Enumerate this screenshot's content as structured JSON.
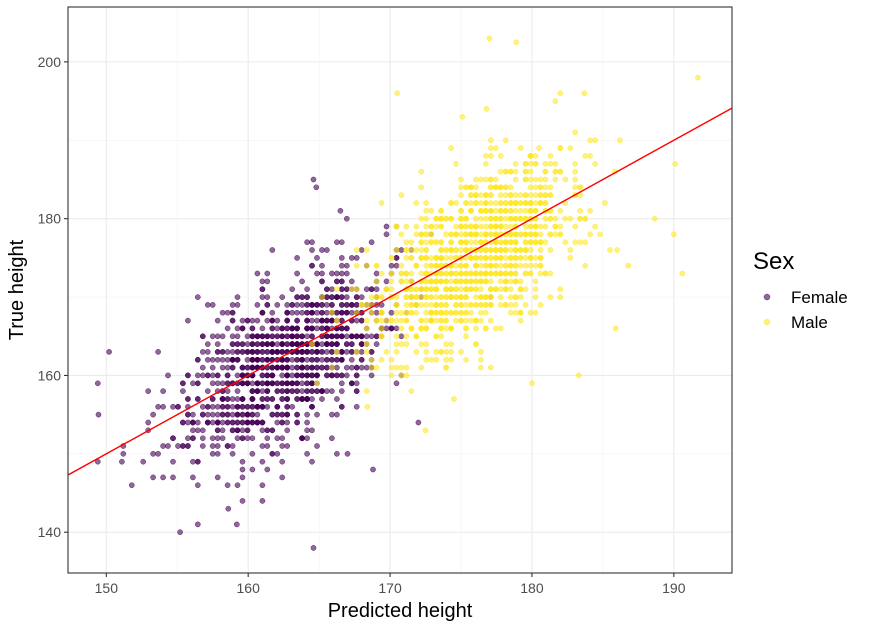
{
  "chart_data": {
    "type": "scatter",
    "xlabel": "Predicted height",
    "ylabel": "True height",
    "xlim": [
      147.3,
      194.1
    ],
    "ylim": [
      134.8,
      207.0
    ],
    "x_ticks": [
      150,
      160,
      170,
      180,
      190
    ],
    "y_ticks": [
      140,
      160,
      180,
      200
    ],
    "grid": true,
    "legend": {
      "title": "Sex",
      "placement": "right",
      "entries": [
        "Female",
        "Male"
      ]
    },
    "series": [
      {
        "name": "Female",
        "color": "#440154",
        "opacity": 0.6,
        "generated_points": {
          "count": 1200,
          "x_mean": 162.5,
          "x_sd": 3.6,
          "y_mean": 161.5,
          "y_sd": 5.8,
          "correlation": 0.55,
          "x_step": 0.35,
          "y_step": 1.0
        },
        "points": [
          [
            149.4,
            159
          ],
          [
            149.4,
            149
          ],
          [
            150.2,
            163
          ],
          [
            151.1,
            149
          ],
          [
            151.8,
            146
          ],
          [
            155.2,
            140
          ],
          [
            158.6,
            143
          ],
          [
            159.2,
            141
          ],
          [
            164.6,
            138
          ],
          [
            164.8,
            184
          ],
          [
            164.6,
            185
          ],
          [
            166.5,
            181
          ],
          [
            168.8,
            148
          ],
          [
            167.0,
            150
          ],
          [
            172.0,
            154
          ]
        ]
      },
      {
        "name": "Male",
        "color": "#FDE725",
        "opacity": 0.6,
        "generated_points": {
          "count": 1200,
          "x_mean": 176.0,
          "x_sd": 3.6,
          "y_mean": 175.0,
          "y_sd": 6.0,
          "correlation": 0.55,
          "x_step": 0.35,
          "y_step": 1.0
        },
        "points": [
          [
            177.0,
            203
          ],
          [
            178.9,
            202.5
          ],
          [
            191.7,
            198
          ],
          [
            190.1,
            187
          ],
          [
            190.6,
            173
          ],
          [
            190.0,
            178
          ],
          [
            186.0,
            176
          ],
          [
            185.9,
            166
          ],
          [
            186.8,
            174
          ],
          [
            170.5,
            196
          ],
          [
            172.5,
            153
          ],
          [
            168.4,
            156
          ],
          [
            174.5,
            157
          ],
          [
            180.0,
            159
          ],
          [
            183.3,
            160
          ],
          [
            180.5,
            189
          ],
          [
            176.8,
            194
          ],
          [
            175.1,
            193
          ],
          [
            182.0,
            196
          ],
          [
            183.7,
            196
          ]
        ]
      }
    ],
    "fit_line": {
      "color": "#FF0000",
      "x": [
        147.3,
        194.1
      ],
      "y": [
        147.3,
        194.1
      ]
    }
  }
}
